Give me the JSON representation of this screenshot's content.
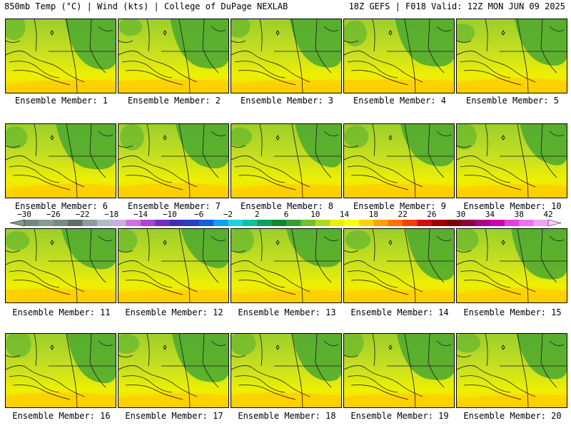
{
  "header": {
    "left_title": "850mb Temp (°C) | Wind (kts) | College of DuPage NEXLAB",
    "right_title": "18Z GEFS | F018 Valid: 12Z MON JUN 09 2025"
  },
  "panel_caption_prefix": "Ensemble Member: ",
  "members": [
    {
      "label": "Ensemble Member: 1"
    },
    {
      "label": "Ensemble Member: 2"
    },
    {
      "label": "Ensemble Member: 3"
    },
    {
      "label": "Ensemble Member: 4"
    },
    {
      "label": "Ensemble Member: 5"
    },
    {
      "label": "Ensemble Member: 6"
    },
    {
      "label": "Ensemble Member: 7"
    },
    {
      "label": "Ensemble Member: 8"
    },
    {
      "label": "Ensemble Member: 9"
    },
    {
      "label": "Ensemble Member: 10"
    },
    {
      "label": "Ensemble Member: 11"
    },
    {
      "label": "Ensemble Member: 12"
    },
    {
      "label": "Ensemble Member: 13"
    },
    {
      "label": "Ensemble Member: 14"
    },
    {
      "label": "Ensemble Member: 15"
    },
    {
      "label": "Ensemble Member: 16"
    },
    {
      "label": "Ensemble Member: 17"
    },
    {
      "label": "Ensemble Member: 18"
    },
    {
      "label": "Ensemble Member: 19"
    },
    {
      "label": "Ensemble Member: 20"
    }
  ],
  "colorbar": {
    "labels": [
      "-30",
      "-26",
      "-22",
      "-18",
      "-14",
      "-10",
      "-6",
      "-2",
      "2",
      "6",
      "10",
      "14",
      "18",
      "22",
      "26",
      "30",
      "34",
      "38",
      "42"
    ],
    "colors": [
      "#6f8a7a",
      "#8a9a8c",
      "#768a80",
      "#5c6e66",
      "#8e9aa0",
      "#b0bcc4",
      "#c8b0e0",
      "#d070e0",
      "#b040d0",
      "#7030c0",
      "#4030b0",
      "#2040c0",
      "#1060e0",
      "#10a0f0",
      "#20d0e0",
      "#10c0a0",
      "#10a060",
      "#108a30",
      "#30a030",
      "#70c030",
      "#b0d820",
      "#e8f000",
      "#ffff00",
      "#ffd000",
      "#ffa000",
      "#ff7000",
      "#f04010",
      "#d01010",
      "#a00000",
      "#800000",
      "#900040",
      "#b00080",
      "#d000b0",
      "#e040e0",
      "#f070f0",
      "#f8a0f8"
    ],
    "min": -30,
    "max": 42
  },
  "colors": {
    "warm": "#ffe600",
    "mid": "#c8e020",
    "cool": "#4aa830"
  }
}
